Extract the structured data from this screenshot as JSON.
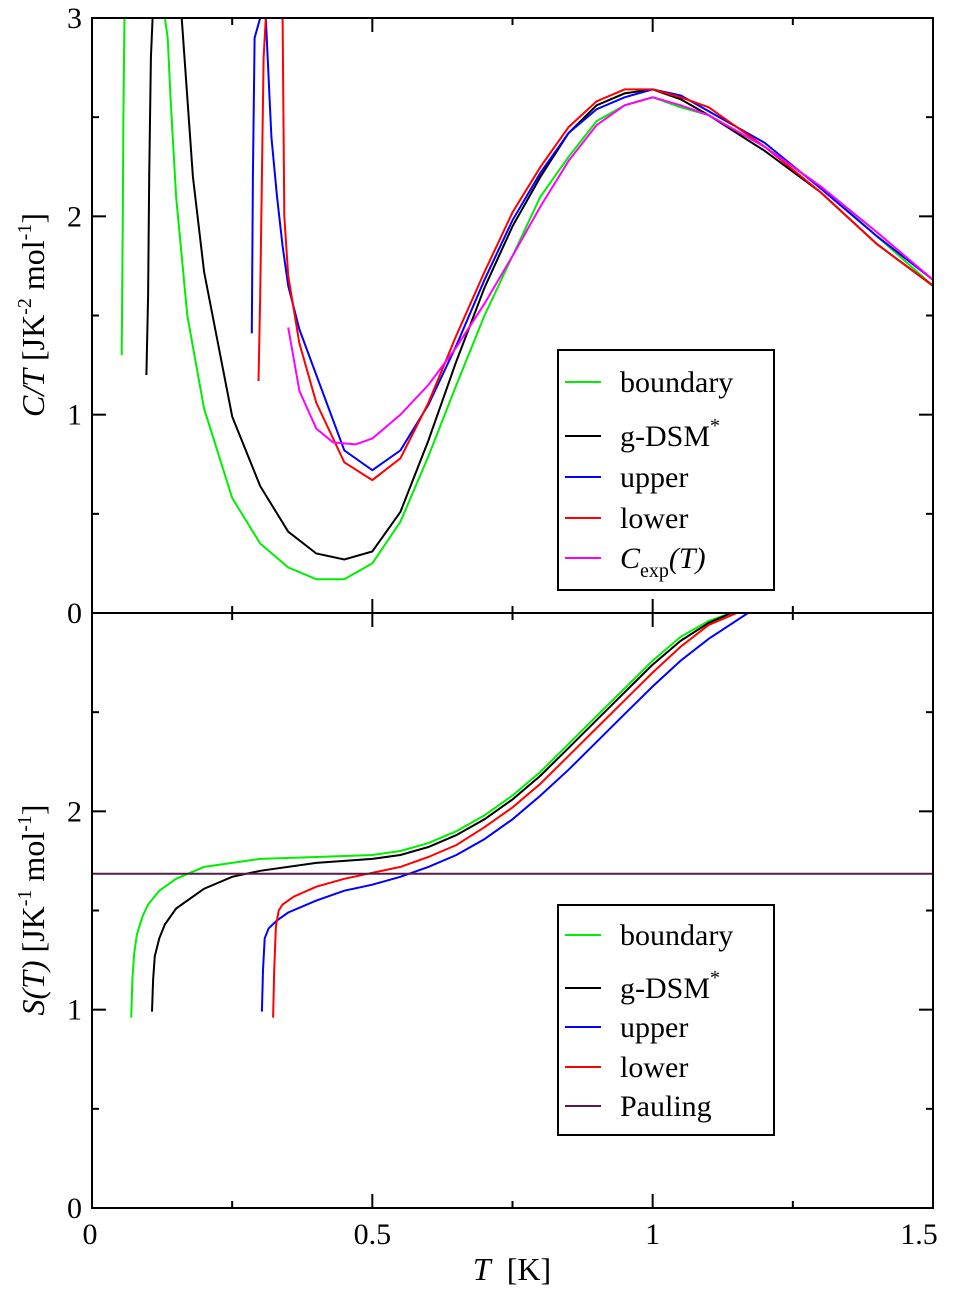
{
  "chart_data": [
    {
      "type": "line",
      "panel": "top",
      "ylabel": "C/T [JK-2mol-1]",
      "ylabel_parts": {
        "main": "C/T",
        "unit_prefix": " [JK",
        "sup1": "-2",
        "mid": " mol",
        "sup2": "-1",
        "end": "]"
      },
      "xlim": [
        0,
        1.5
      ],
      "ylim": [
        0,
        3
      ],
      "yticks": [
        0,
        1,
        2,
        3
      ],
      "ytick_labels": [
        "0",
        "1",
        "2",
        "3"
      ],
      "legend_position": "center-right",
      "series": [
        {
          "name": "boundary",
          "color": "#00ee00",
          "x": [
            0.053,
            0.055,
            0.056,
            0.057,
            0.058,
            0.06,
            0.063,
            0.066
          ],
          "y": [
            1.3,
            2.0,
            2.5,
            2.8,
            3.0,
            3.0,
            3.0,
            3.0
          ]
        },
        {
          "name": "boundary",
          "color": "#00ee00",
          "x": [
            0.13,
            0.135,
            0.14,
            0.15,
            0.16,
            0.17,
            0.2,
            0.25,
            0.3,
            0.35,
            0.4,
            0.45,
            0.5,
            0.55,
            0.6,
            0.65,
            0.7,
            0.75,
            0.8,
            0.85,
            0.9,
            0.95,
            1.0,
            1.05,
            1.1,
            1.2,
            1.3,
            1.4,
            1.5
          ],
          "y": [
            3.0,
            2.9,
            2.6,
            2.1,
            1.8,
            1.5,
            1.03,
            0.58,
            0.35,
            0.23,
            0.17,
            0.17,
            0.25,
            0.46,
            0.79,
            1.15,
            1.5,
            1.8,
            2.1,
            2.3,
            2.48,
            2.56,
            2.6,
            2.55,
            2.51,
            2.35,
            2.15,
            1.9,
            1.65
          ]
        },
        {
          "name": "g-DSM*",
          "color": "#000000",
          "x": [
            0.097,
            0.1,
            0.102,
            0.105,
            0.108
          ],
          "y": [
            1.2,
            1.6,
            2.2,
            2.8,
            3.0
          ]
        },
        {
          "name": "g-DSM*",
          "color": "#000000",
          "x": [
            0.16,
            0.17,
            0.18,
            0.2,
            0.25,
            0.3,
            0.35,
            0.4,
            0.45,
            0.5,
            0.55,
            0.6,
            0.65,
            0.7,
            0.75,
            0.8,
            0.85,
            0.9,
            0.95,
            1.0,
            1.05,
            1.1,
            1.2,
            1.3,
            1.4,
            1.5
          ],
          "y": [
            3.0,
            2.6,
            2.2,
            1.72,
            0.99,
            0.64,
            0.41,
            0.3,
            0.27,
            0.31,
            0.51,
            0.87,
            1.27,
            1.64,
            1.95,
            2.2,
            2.42,
            2.56,
            2.62,
            2.64,
            2.59,
            2.51,
            2.33,
            2.12,
            1.86,
            1.65
          ]
        },
        {
          "name": "upper",
          "color": "#0000ff",
          "x": [
            0.285,
            0.287,
            0.29,
            0.3,
            0.31,
            0.32,
            0.33,
            0.34,
            0.35,
            0.37,
            0.4,
            0.45,
            0.5,
            0.55,
            0.6,
            0.65,
            0.7,
            0.75,
            0.8,
            0.85,
            0.9,
            0.95,
            1.0,
            1.05,
            1.1,
            1.2,
            1.3,
            1.4,
            1.5
          ],
          "y": [
            1.41,
            2.2,
            2.9,
            3.0,
            3.0,
            2.4,
            2.1,
            1.85,
            1.65,
            1.43,
            1.2,
            0.82,
            0.72,
            0.82,
            1.05,
            1.35,
            1.68,
            1.98,
            2.22,
            2.42,
            2.54,
            2.6,
            2.64,
            2.61,
            2.53,
            2.37,
            2.14,
            1.9,
            1.68
          ]
        },
        {
          "name": "lower",
          "color": "#ff0000",
          "x": [
            0.297,
            0.3,
            0.303,
            0.306,
            0.31,
            0.315,
            0.32,
            0.33,
            0.335,
            0.34,
            0.343,
            0.35,
            0.37,
            0.4,
            0.45,
            0.5,
            0.55,
            0.6,
            0.65,
            0.7,
            0.75,
            0.8,
            0.85,
            0.9,
            0.95,
            1.0,
            1.05,
            1.1,
            1.2,
            1.3,
            1.4,
            1.5
          ],
          "y": [
            1.17,
            1.6,
            2.2,
            2.8,
            3.0,
            3.0,
            3.0,
            3.0,
            3.0,
            3.0,
            2.0,
            1.7,
            1.36,
            1.06,
            0.76,
            0.67,
            0.78,
            1.06,
            1.4,
            1.72,
            2.02,
            2.25,
            2.45,
            2.58,
            2.64,
            2.64,
            2.6,
            2.55,
            2.35,
            2.12,
            1.86,
            1.65
          ]
        },
        {
          "name": "Cexp(T)",
          "color": "#ff00ff",
          "x": [
            0.35,
            0.37,
            0.4,
            0.43,
            0.47,
            0.5,
            0.55,
            0.6,
            0.65,
            0.7,
            0.75,
            0.8,
            0.85,
            0.9,
            0.95,
            1.0,
            1.05,
            1.1,
            1.2,
            1.3,
            1.4,
            1.5
          ],
          "y": [
            1.44,
            1.12,
            0.93,
            0.86,
            0.85,
            0.88,
            1.0,
            1.15,
            1.34,
            1.56,
            1.8,
            2.05,
            2.28,
            2.46,
            2.56,
            2.6,
            2.56,
            2.51,
            2.35,
            2.15,
            1.92,
            1.68
          ]
        }
      ],
      "legend": [
        {
          "key": "boundary",
          "color": "#00ee00",
          "label": "boundary"
        },
        {
          "key": "gdsm",
          "color": "#000000",
          "label": "g-DSM",
          "sup": "*"
        },
        {
          "key": "upper",
          "color": "#0000ff",
          "label": "upper"
        },
        {
          "key": "lower",
          "color": "#ff0000",
          "label": "lower"
        },
        {
          "key": "cexp",
          "color": "#ff00ff",
          "label": "C",
          "sub": "exp",
          "tail": "(T)"
        }
      ]
    },
    {
      "type": "line",
      "panel": "bottom",
      "ylabel": "S(T) [JK-1mol-1]",
      "ylabel_parts": {
        "main": "S(T)",
        "unit_prefix": "  [JK",
        "sup1": "-1",
        "mid": " mol",
        "sup2": "-1",
        "end": "]"
      },
      "xlabel": "T [K]",
      "xlabel_parts": {
        "main": "T",
        "unit": "  [K]"
      },
      "xlim": [
        0,
        1.5
      ],
      "ylim": [
        0,
        3
      ],
      "xticks": [
        0,
        0.5,
        1,
        1.5
      ],
      "xtick_labels": [
        "0",
        "0.5",
        "1",
        "1.5"
      ],
      "yticks": [
        0,
        1,
        2
      ],
      "ytick_labels": [
        "0",
        "1",
        "2"
      ],
      "legend_position": "bottom-right",
      "series": [
        {
          "name": "boundary",
          "color": "#00ee00",
          "x": [
            0.07,
            0.072,
            0.075,
            0.08,
            0.09,
            0.1,
            0.12,
            0.15,
            0.2,
            0.25,
            0.3,
            0.4,
            0.5,
            0.55,
            0.6,
            0.65,
            0.7,
            0.75,
            0.8,
            0.85,
            0.9,
            0.95,
            1.0,
            1.05,
            1.1,
            1.14
          ],
          "y": [
            0.96,
            1.15,
            1.28,
            1.38,
            1.47,
            1.53,
            1.6,
            1.66,
            1.72,
            1.74,
            1.76,
            1.77,
            1.78,
            1.8,
            1.84,
            1.9,
            1.98,
            2.08,
            2.2,
            2.34,
            2.48,
            2.62,
            2.76,
            2.88,
            2.96,
            3.0
          ]
        },
        {
          "name": "g-DSM*",
          "color": "#000000",
          "x": [
            0.107,
            0.109,
            0.112,
            0.12,
            0.13,
            0.15,
            0.2,
            0.25,
            0.3,
            0.4,
            0.5,
            0.55,
            0.6,
            0.65,
            0.7,
            0.75,
            0.8,
            0.85,
            0.9,
            0.95,
            1.0,
            1.05,
            1.1,
            1.14
          ],
          "y": [
            0.99,
            1.15,
            1.27,
            1.36,
            1.43,
            1.51,
            1.61,
            1.67,
            1.7,
            1.74,
            1.76,
            1.78,
            1.82,
            1.88,
            1.96,
            2.06,
            2.18,
            2.32,
            2.46,
            2.6,
            2.74,
            2.86,
            2.95,
            3.0
          ]
        },
        {
          "name": "upper",
          "color": "#0000ff",
          "x": [
            0.303,
            0.305,
            0.308,
            0.315,
            0.33,
            0.35,
            0.4,
            0.45,
            0.5,
            0.55,
            0.6,
            0.65,
            0.7,
            0.75,
            0.8,
            0.85,
            0.9,
            0.95,
            1.0,
            1.05,
            1.1,
            1.17
          ],
          "y": [
            0.99,
            1.2,
            1.36,
            1.41,
            1.45,
            1.49,
            1.55,
            1.6,
            1.63,
            1.67,
            1.72,
            1.78,
            1.86,
            1.96,
            2.08,
            2.21,
            2.35,
            2.49,
            2.63,
            2.76,
            2.87,
            3.0
          ]
        },
        {
          "name": "lower",
          "color": "#ff0000",
          "x": [
            0.323,
            0.325,
            0.328,
            0.333,
            0.34,
            0.36,
            0.4,
            0.45,
            0.5,
            0.55,
            0.6,
            0.65,
            0.7,
            0.75,
            0.8,
            0.85,
            0.9,
            0.95,
            1.0,
            1.05,
            1.1,
            1.15
          ],
          "y": [
            0.96,
            1.2,
            1.42,
            1.5,
            1.53,
            1.57,
            1.62,
            1.66,
            1.69,
            1.72,
            1.77,
            1.83,
            1.92,
            2.02,
            2.14,
            2.28,
            2.42,
            2.56,
            2.7,
            2.83,
            2.94,
            3.0
          ]
        },
        {
          "name": "Pauling",
          "color": "#5a1a4a",
          "x": [
            0,
            1.5
          ],
          "y": [
            1.685,
            1.685
          ]
        }
      ],
      "legend": [
        {
          "key": "boundary",
          "color": "#00ee00",
          "label": "boundary"
        },
        {
          "key": "gdsm",
          "color": "#000000",
          "label": "g-DSM",
          "sup": "*"
        },
        {
          "key": "upper",
          "color": "#0000ff",
          "label": "upper"
        },
        {
          "key": "lower",
          "color": "#ff0000",
          "label": "lower"
        },
        {
          "key": "pauling",
          "color": "#5a1a4a",
          "label": "Pauling"
        }
      ]
    }
  ]
}
